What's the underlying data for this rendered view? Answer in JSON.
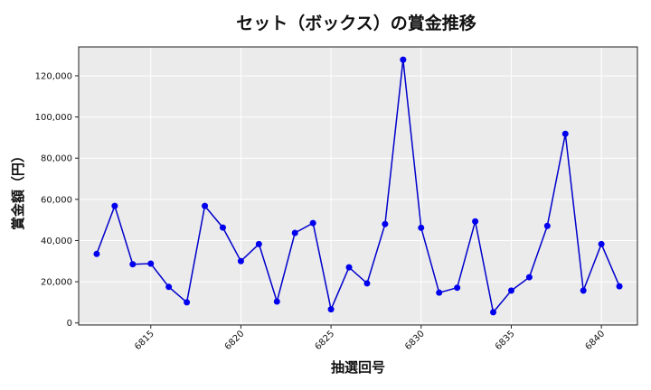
{
  "chart_data": {
    "type": "line",
    "title": "セット（ボックス）の賞金推移",
    "xlabel": "抽選回号",
    "ylabel": "賞金額（円）",
    "xlim": [
      6811,
      6842
    ],
    "ylim": [
      -1000,
      134000
    ],
    "x_ticks": [
      6815,
      6820,
      6825,
      6830,
      6835,
      6840
    ],
    "y_ticks": [
      0,
      20000,
      40000,
      60000,
      80000,
      100000,
      120000
    ],
    "y_tick_labels": [
      "0",
      "20,000",
      "40,000",
      "60,000",
      "80,000",
      "100,000",
      "120,000"
    ],
    "grid": true,
    "line_color": "#0000cc",
    "marker_color": "#0000ee",
    "plot_background": "#ebebeb",
    "series": [
      {
        "x": [
          6812,
          6813,
          6814,
          6815,
          6816,
          6817,
          6818,
          6819,
          6820,
          6821,
          6822,
          6823,
          6824,
          6825,
          6826,
          6827,
          6828,
          6829,
          6830,
          6831,
          6832,
          6833,
          6834,
          6835,
          6836,
          6837,
          6838,
          6839,
          6840,
          6841
        ],
        "values": [
          33500,
          56800,
          28500,
          28800,
          17500,
          10000,
          56800,
          46300,
          30000,
          38300,
          10400,
          43700,
          48500,
          6600,
          27000,
          19200,
          48000,
          127800,
          46200,
          14700,
          17100,
          49300,
          5200,
          15700,
          22200,
          47100,
          91800,
          15700,
          38300,
          17800
        ]
      }
    ]
  }
}
